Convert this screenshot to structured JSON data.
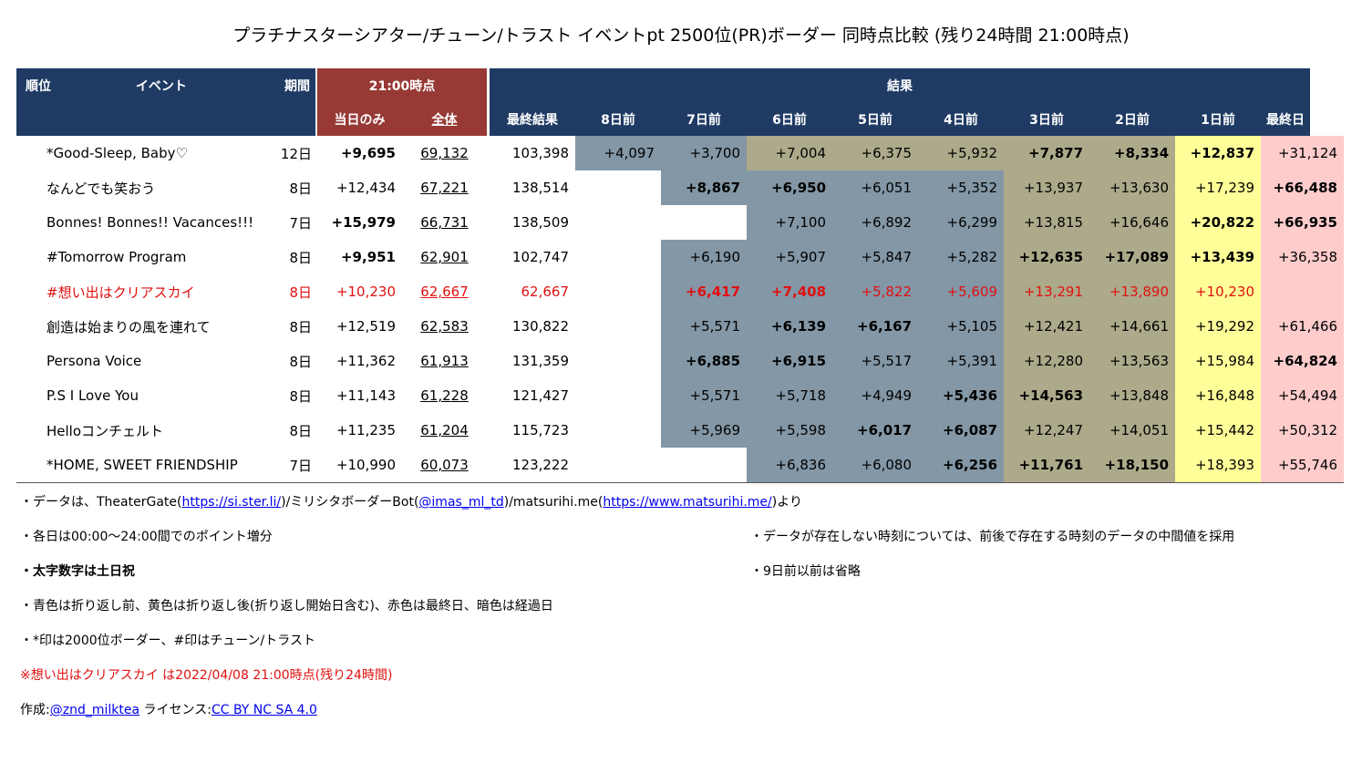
{
  "title": "プラチナスターシアター/チューン/トラスト イベントpt 2500位(PR)ボーダー 同時点比較 (残り24時間 21:00時点)",
  "header": {
    "rank": "順位",
    "event": "イベント",
    "period": "期間",
    "snapshot": "21:00時点",
    "result": "結果",
    "day_only": "当日のみ",
    "total": "全体",
    "final_result": "最終結果",
    "days": [
      "8日前",
      "7日前",
      "6日前",
      "5日前",
      "4日前",
      "3日前",
      "2日前",
      "1日前",
      "最終日"
    ]
  },
  "legend_colors": {
    "header": "#1f3b64",
    "snapshot_header": "#973a35",
    "before_turn": "#8397a6",
    "elapsed_dark": "#acaa8a",
    "after_turn_yellow": "#ffff99",
    "final_day_red": "#ffcccc",
    "current_event_text": "#e01010"
  },
  "rows": [
    {
      "name": "*Good-Sleep, Baby♡",
      "period": "12日",
      "day": "+9,695",
      "day_b": true,
      "total": "69,132",
      "final": "103,398",
      "cells": [
        [
          "+4,097",
          "blue",
          false
        ],
        [
          "+3,700",
          "blue",
          false
        ],
        [
          "+7,004",
          "dark",
          false
        ],
        [
          "+6,375",
          "dark",
          false
        ],
        [
          "+5,932",
          "dark",
          false
        ],
        [
          "+7,877",
          "dark",
          true
        ],
        [
          "+8,334",
          "dark",
          true
        ],
        [
          "+12,837",
          "yel",
          true
        ],
        [
          "+31,124",
          "pink",
          false
        ]
      ]
    },
    {
      "name": "なんどでも笑おう",
      "period": "8日",
      "day": "+12,434",
      "day_b": false,
      "total": "67,221",
      "final": "138,514",
      "cells": [
        [
          "",
          "",
          false
        ],
        [
          "+8,867",
          "blue",
          true
        ],
        [
          "+6,950",
          "blue",
          true
        ],
        [
          "+6,051",
          "blue",
          false
        ],
        [
          "+5,352",
          "blue",
          false
        ],
        [
          "+13,937",
          "dark",
          false
        ],
        [
          "+13,630",
          "dark",
          false
        ],
        [
          "+17,239",
          "yel",
          false
        ],
        [
          "+66,488",
          "pink",
          true
        ]
      ]
    },
    {
      "name": "Bonnes! Bonnes!! Vacances!!!",
      "period": "7日",
      "day": "+15,979",
      "day_b": true,
      "total": "66,731",
      "final": "138,509",
      "cells": [
        [
          "",
          "",
          false
        ],
        [
          "",
          "",
          false
        ],
        [
          "+7,100",
          "blue",
          false
        ],
        [
          "+6,892",
          "blue",
          false
        ],
        [
          "+6,299",
          "blue",
          false
        ],
        [
          "+13,815",
          "dark",
          false
        ],
        [
          "+16,646",
          "dark",
          false
        ],
        [
          "+20,822",
          "yel",
          true
        ],
        [
          "+66,935",
          "pink",
          true
        ]
      ]
    },
    {
      "name": "#Tomorrow Program",
      "period": "8日",
      "day": "+9,951",
      "day_b": true,
      "total": "62,901",
      "final": "102,747",
      "cells": [
        [
          "",
          "",
          false
        ],
        [
          "+6,190",
          "blue",
          false
        ],
        [
          "+5,907",
          "blue",
          false
        ],
        [
          "+5,847",
          "blue",
          false
        ],
        [
          "+5,282",
          "blue",
          false
        ],
        [
          "+12,635",
          "dark",
          true
        ],
        [
          "+17,089",
          "dark",
          true
        ],
        [
          "+13,439",
          "yel",
          true
        ],
        [
          "+36,358",
          "pink",
          false
        ]
      ]
    },
    {
      "name": "#想い出はクリアスカイ",
      "period": "8日",
      "day": "+10,230",
      "day_b": false,
      "total": "62,667",
      "final": "62,667",
      "current": true,
      "cells": [
        [
          "",
          "",
          false
        ],
        [
          "+6,417",
          "blue",
          true
        ],
        [
          "+7,408",
          "blue",
          true
        ],
        [
          "+5,822",
          "blue",
          false
        ],
        [
          "+5,609",
          "blue",
          false
        ],
        [
          "+13,291",
          "dark",
          false
        ],
        [
          "+13,890",
          "dark",
          false
        ],
        [
          "+10,230",
          "yel",
          false
        ],
        [
          "",
          "pink",
          false
        ]
      ]
    },
    {
      "name": "創造は始まりの風を連れて",
      "period": "8日",
      "day": "+12,519",
      "day_b": false,
      "total": "62,583",
      "final": "130,822",
      "cells": [
        [
          "",
          "",
          false
        ],
        [
          "+5,571",
          "blue",
          false
        ],
        [
          "+6,139",
          "blue",
          true
        ],
        [
          "+6,167",
          "blue",
          true
        ],
        [
          "+5,105",
          "blue",
          false
        ],
        [
          "+12,421",
          "dark",
          false
        ],
        [
          "+14,661",
          "dark",
          false
        ],
        [
          "+19,292",
          "yel",
          false
        ],
        [
          "+61,466",
          "pink",
          false
        ]
      ]
    },
    {
      "name": "Persona Voice",
      "period": "8日",
      "day": "+11,362",
      "day_b": false,
      "total": "61,913",
      "final": "131,359",
      "cells": [
        [
          "",
          "",
          false
        ],
        [
          "+6,885",
          "blue",
          true
        ],
        [
          "+6,915",
          "blue",
          true
        ],
        [
          "+5,517",
          "blue",
          false
        ],
        [
          "+5,391",
          "blue",
          false
        ],
        [
          "+12,280",
          "dark",
          false
        ],
        [
          "+13,563",
          "dark",
          false
        ],
        [
          "+15,984",
          "yel",
          false
        ],
        [
          "+64,824",
          "pink",
          true
        ]
      ]
    },
    {
      "name": "P.S I Love You",
      "period": "8日",
      "day": "+11,143",
      "day_b": false,
      "total": "61,228",
      "final": "121,427",
      "cells": [
        [
          "",
          "",
          false
        ],
        [
          "+5,571",
          "blue",
          false
        ],
        [
          "+5,718",
          "blue",
          false
        ],
        [
          "+4,949",
          "blue",
          false
        ],
        [
          "+5,436",
          "blue",
          true
        ],
        [
          "+14,563",
          "dark",
          true
        ],
        [
          "+13,848",
          "dark",
          false
        ],
        [
          "+16,848",
          "yel",
          false
        ],
        [
          "+54,494",
          "pink",
          false
        ]
      ]
    },
    {
      "name": "Helloコンチェルト",
      "period": "8日",
      "day": "+11,235",
      "day_b": false,
      "total": "61,204",
      "final": "115,723",
      "cells": [
        [
          "",
          "",
          false
        ],
        [
          "+5,969",
          "blue",
          false
        ],
        [
          "+5,598",
          "blue",
          false
        ],
        [
          "+6,017",
          "blue",
          true
        ],
        [
          "+6,087",
          "blue",
          true
        ],
        [
          "+12,247",
          "dark",
          false
        ],
        [
          "+14,051",
          "dark",
          false
        ],
        [
          "+15,442",
          "yel",
          false
        ],
        [
          "+50,312",
          "pink",
          false
        ]
      ]
    },
    {
      "name": "*HOME, SWEET FRIENDSHIP",
      "period": "7日",
      "day": "+10,990",
      "day_b": false,
      "total": "60,073",
      "final": "123,222",
      "cells": [
        [
          "",
          "",
          false
        ],
        [
          "",
          "",
          false
        ],
        [
          "+6,836",
          "blue",
          false
        ],
        [
          "+6,080",
          "blue",
          false
        ],
        [
          "+6,256",
          "blue",
          true
        ],
        [
          "+11,761",
          "dark",
          true
        ],
        [
          "+18,150",
          "dark",
          true
        ],
        [
          "+18,393",
          "yel",
          false
        ],
        [
          "+55,746",
          "pink",
          false
        ]
      ]
    }
  ],
  "notes": {
    "source_prefix": "・データは、TheaterGate(",
    "link1": "https://si.ster.li/",
    "source_mid1": ")/ミリシタボーダーBot(",
    "link2": "@imas_ml_td",
    "source_mid2": ")/matsurihi.me(",
    "link3": "https://www.matsurihi.me/",
    "source_suffix": ")より",
    "note_daily": "・各日は00:00～24:00間でのポイント増分",
    "note_bold": "・太字数字は土日祝",
    "note_colors": "・青色は折り返し前、黄色は折り返し後(折り返し開始日含む)、赤色は最終日、暗色は経過日",
    "note_marks": "・*印は2000位ボーダー、#印はチューン/トラスト",
    "note_current": "※想い出はクリアスカイ は2022/04/08 21:00時点(残り24時間)",
    "note_missing": "・データが存在しない時刻については、前後で存在する時刻のデータの中間値を採用",
    "note_omit": "・9日前以前は省略",
    "author_label": "作成:",
    "author": "@znd_milktea",
    "license_label": " ライセンス:",
    "license": "CC BY NC SA 4.0"
  }
}
